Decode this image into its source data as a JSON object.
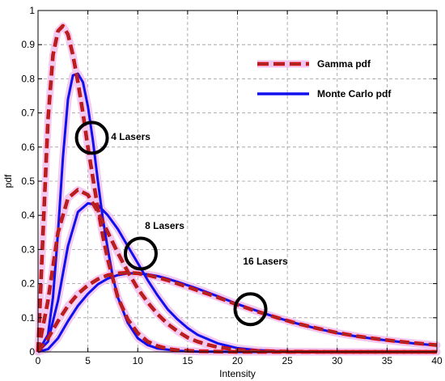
{
  "chart_data": {
    "type": "line",
    "title": "",
    "xlabel": "Intensity",
    "ylabel": "pdf",
    "xlim": [
      0,
      40
    ],
    "ylim": [
      0,
      1
    ],
    "xticks": [
      0,
      5,
      10,
      15,
      20,
      25,
      30,
      35,
      40
    ],
    "yticks": [
      0,
      0.1,
      0.2,
      0.3,
      0.4,
      0.5,
      0.6,
      0.7,
      0.8,
      0.9,
      1
    ],
    "xtick_labels": [
      "0",
      "5",
      "10",
      "15",
      "20",
      "25",
      "30",
      "35",
      "40"
    ],
    "ytick_labels": [
      "0",
      "0.1",
      "0.2",
      "0.3",
      "0.4",
      "0.5",
      "0.6",
      "0.7",
      "0.8",
      "0.9",
      "1"
    ],
    "grid": true,
    "legend_position": "top-right",
    "legend": [
      {
        "label": "Gamma pdf",
        "color": "#a52a2a",
        "accent": "#e00000",
        "style": "dashed"
      },
      {
        "label": "Monte Carlo pdf",
        "color": "#1010ee",
        "style": "solid"
      }
    ],
    "annotations": [
      {
        "text": "4 Lasers",
        "x": 9.3,
        "y": 0.63,
        "circle_at": [
          5.4,
          0.627
        ]
      },
      {
        "text": "8 Lasers",
        "x": 12.7,
        "y": 0.37,
        "circle_at": [
          10.3,
          0.288
        ]
      },
      {
        "text": "16 Lasers",
        "x": 22.8,
        "y": 0.265,
        "circle_at": [
          21.3,
          0.125
        ]
      }
    ],
    "series": [
      {
        "style": "gamma",
        "x": [
          0,
          0.5,
          1,
          1.5,
          2,
          2.5,
          3,
          3.5,
          4,
          4.5,
          5,
          5.5,
          6,
          6.5,
          7,
          8,
          9,
          10,
          11,
          12,
          13,
          14,
          16,
          18,
          20,
          25,
          30,
          40
        ],
        "values": [
          0,
          0.35,
          0.68,
          0.87,
          0.94,
          0.955,
          0.93,
          0.87,
          0.79,
          0.7,
          0.6,
          0.51,
          0.42,
          0.34,
          0.27,
          0.16,
          0.095,
          0.055,
          0.03,
          0.017,
          0.009,
          0.005,
          0.002,
          0.001,
          0,
          0,
          0,
          0
        ]
      },
      {
        "style": "gamma",
        "x": [
          0,
          1,
          2,
          3,
          4,
          5,
          6,
          7,
          8,
          9,
          10,
          11,
          12,
          13,
          14,
          15,
          16,
          17,
          18,
          20,
          22,
          25,
          30,
          40
        ],
        "values": [
          0,
          0.15,
          0.35,
          0.45,
          0.475,
          0.46,
          0.41,
          0.35,
          0.29,
          0.235,
          0.185,
          0.145,
          0.11,
          0.082,
          0.06,
          0.042,
          0.03,
          0.021,
          0.014,
          0.006,
          0.003,
          0.001,
          0,
          0
        ]
      },
      {
        "style": "gamma",
        "x": [
          0,
          1,
          2,
          3,
          4,
          5,
          6,
          7,
          8,
          9,
          10,
          11,
          12,
          13,
          14,
          15,
          16,
          18,
          20,
          22,
          24,
          26,
          28,
          30,
          32,
          34,
          36,
          38,
          40
        ],
        "values": [
          0,
          0.04,
          0.09,
          0.135,
          0.17,
          0.195,
          0.213,
          0.225,
          0.23,
          0.232,
          0.23,
          0.225,
          0.218,
          0.21,
          0.2,
          0.19,
          0.18,
          0.16,
          0.138,
          0.118,
          0.1,
          0.083,
          0.069,
          0.056,
          0.046,
          0.038,
          0.031,
          0.025,
          0.02
        ]
      },
      {
        "style": "monte",
        "x": [
          0,
          1,
          1.5,
          2,
          2.5,
          3,
          3.5,
          4,
          4.5,
          5,
          5.5,
          6,
          6.5,
          7,
          7.5,
          8,
          9,
          10,
          11,
          12,
          14,
          16,
          20,
          30,
          40
        ],
        "values": [
          0,
          0.05,
          0.16,
          0.35,
          0.57,
          0.74,
          0.81,
          0.815,
          0.79,
          0.72,
          0.62,
          0.5,
          0.39,
          0.3,
          0.22,
          0.16,
          0.085,
          0.04,
          0.02,
          0.01,
          0.003,
          0.001,
          0,
          0,
          0
        ]
      },
      {
        "style": "monte",
        "x": [
          0,
          1,
          2,
          3,
          4,
          5,
          6,
          7,
          8,
          9,
          10,
          11,
          12,
          13,
          14,
          15,
          16,
          18,
          20,
          22,
          25,
          30,
          40
        ],
        "values": [
          0,
          0.03,
          0.15,
          0.31,
          0.41,
          0.435,
          0.43,
          0.4,
          0.36,
          0.31,
          0.26,
          0.21,
          0.165,
          0.125,
          0.095,
          0.07,
          0.05,
          0.025,
          0.011,
          0.005,
          0.001,
          0,
          0
        ]
      },
      {
        "style": "monte",
        "x": [
          0,
          1,
          2,
          3,
          4,
          5,
          6,
          7,
          8,
          9,
          10,
          11,
          12,
          13,
          14,
          15,
          16,
          18,
          20,
          22,
          24,
          26,
          28,
          30,
          32,
          34,
          36,
          38,
          40
        ],
        "values": [
          0,
          0.008,
          0.04,
          0.09,
          0.135,
          0.17,
          0.198,
          0.215,
          0.225,
          0.23,
          0.23,
          0.227,
          0.222,
          0.214,
          0.205,
          0.195,
          0.185,
          0.163,
          0.14,
          0.12,
          0.1,
          0.083,
          0.068,
          0.055,
          0.045,
          0.037,
          0.03,
          0.024,
          0.019
        ]
      }
    ]
  }
}
